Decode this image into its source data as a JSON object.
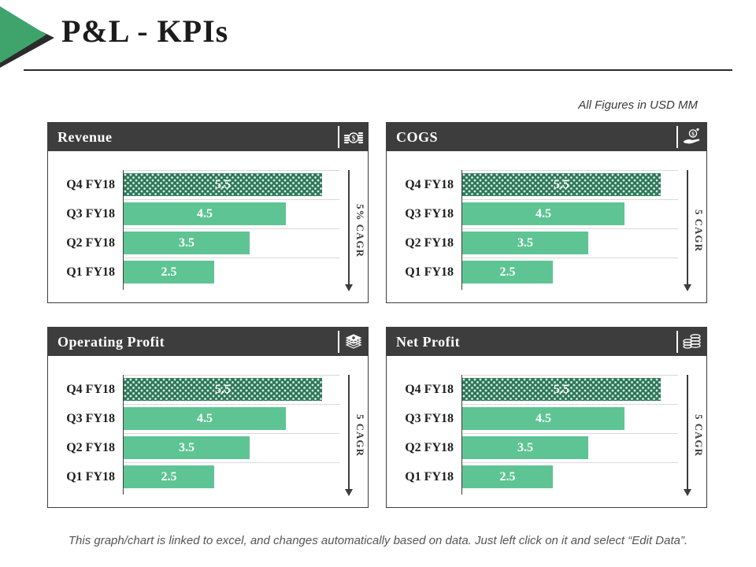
{
  "slide": {
    "title": "P&L - KPIs",
    "figures_note": "All Figures in USD MM",
    "footer_note": "This graph/chart is linked to excel, and changes automatically based on data. Just left click on it and select “Edit Data”."
  },
  "colors": {
    "accent_green": "#3fa46c",
    "bar_green": "#5ec494",
    "bar_green_dark": "#2c795a",
    "header_dark": "#3d3d3d",
    "gridline": "#d9d9d9",
    "axis": "#3d3d3d",
    "title_text": "#1c1c1c",
    "footer_gray": "#555555"
  },
  "chart_data": [
    {
      "type": "bar",
      "orientation": "horizontal",
      "title": "Revenue",
      "icon": "coins-dollar-icon",
      "categories": [
        "Q4 FY18",
        "Q3 FY18",
        "Q2 FY18",
        "Q1 FY18"
      ],
      "values": [
        5.5,
        4.5,
        3.5,
        2.5
      ],
      "value_labels": [
        "5.5",
        "4.5",
        "3.5",
        "2.5"
      ],
      "xlim": [
        0,
        6
      ],
      "grid": true,
      "cagr_label": "5% CAGR",
      "top_bar_style": "dark-dotted"
    },
    {
      "type": "bar",
      "orientation": "horizontal",
      "title": "COGS",
      "icon": "money-hand-icon",
      "categories": [
        "Q4 FY18",
        "Q3 FY18",
        "Q2 FY18",
        "Q1 FY18"
      ],
      "values": [
        5.5,
        4.5,
        3.5,
        2.5
      ],
      "value_labels": [
        "5.5",
        "4.5",
        "3.5",
        "2.5"
      ],
      "xlim": [
        0,
        6
      ],
      "grid": true,
      "cagr_label": "5 CAGR",
      "top_bar_style": "dark-dotted"
    },
    {
      "type": "bar",
      "orientation": "horizontal",
      "title": "Operating Profit",
      "icon": "banknotes-stack-icon",
      "categories": [
        "Q4 FY18",
        "Q3 FY18",
        "Q2 FY18",
        "Q1 FY18"
      ],
      "values": [
        5.5,
        4.5,
        3.5,
        2.5
      ],
      "value_labels": [
        "5.5",
        "4.5",
        "3.5",
        "2.5"
      ],
      "xlim": [
        0,
        6
      ],
      "grid": true,
      "cagr_label": "5 CAGR",
      "top_bar_style": "dark-dotted"
    },
    {
      "type": "bar",
      "orientation": "horizontal",
      "title": "Net Profit",
      "icon": "coin-stacks-icon",
      "categories": [
        "Q4 FY18",
        "Q3 FY18",
        "Q2 FY18",
        "Q1 FY18"
      ],
      "values": [
        5.5,
        4.5,
        3.5,
        2.5
      ],
      "value_labels": [
        "5.5",
        "4.5",
        "3.5",
        "2.5"
      ],
      "xlim": [
        0,
        6
      ],
      "grid": true,
      "cagr_label": "5 CAGR",
      "top_bar_style": "dark-dotted"
    }
  ]
}
